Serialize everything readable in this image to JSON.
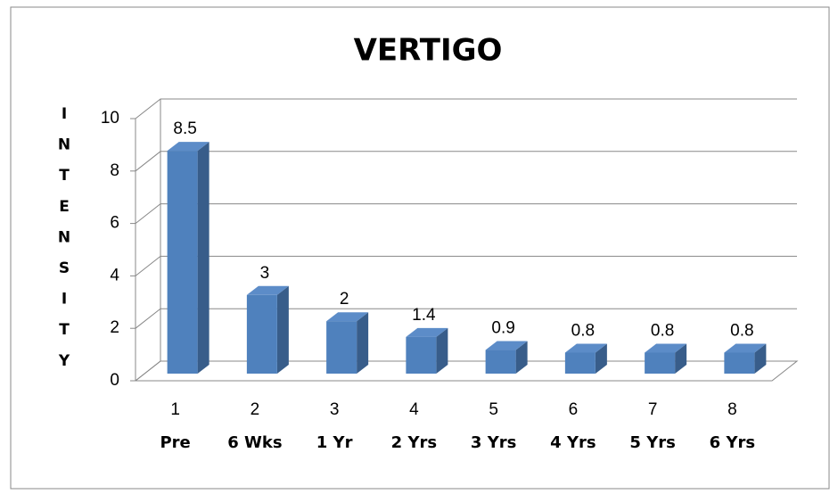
{
  "chart_data": {
    "type": "bar3d",
    "title": "VERTIGO",
    "y_label": "INTENSITY",
    "category_numbers": [
      "1",
      "2",
      "3",
      "4",
      "5",
      "6",
      "7",
      "8"
    ],
    "categories": [
      "Pre",
      "6 Wks",
      "1 Yr",
      "2 Yrs",
      "3 Yrs",
      "4 Yrs",
      "5 Yrs",
      "6 Yrs"
    ],
    "values": [
      8.5,
      3,
      2,
      1.4,
      0.9,
      0.8,
      0.8,
      0.8
    ],
    "color": "#4f81bd",
    "ylim": [
      0,
      10
    ],
    "yticks": [
      0,
      2,
      4,
      6,
      8,
      10
    ],
    "grid": true
  }
}
